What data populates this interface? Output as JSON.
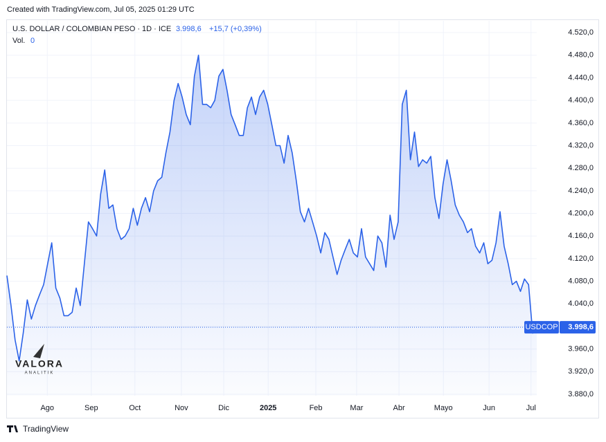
{
  "chart_data": {
    "type": "line",
    "created": "Created with TradingView.com, Jul 05, 2025 01:29 UTC",
    "title": "U.S. DOLLAR / COLOMBIAN PESO · 1D · ICE",
    "last": {
      "value": 3998.6,
      "label": "3.998,6"
    },
    "change": "+15,7 (+0,39%)",
    "volume_label": "Vol.",
    "volume_value": "0",
    "symbol": "USDCOP",
    "logo": "VALORA",
    "logo_sub": "ANALITIK",
    "footer": "TradingView",
    "color": "#2b62e8",
    "grid": true,
    "xlim": [
      0,
      130
    ],
    "xticks": [
      {
        "value": 9.9,
        "label": "Ago"
      },
      {
        "value": 20.7,
        "label": "Sep"
      },
      {
        "value": 31.4,
        "label": "Oct"
      },
      {
        "value": 42.8,
        "label": "Nov"
      },
      {
        "value": 53.2,
        "label": "Dic"
      },
      {
        "value": 64.1,
        "label": "2025"
      },
      {
        "value": 75.8,
        "label": "Feb"
      },
      {
        "value": 85.8,
        "label": "Mar"
      },
      {
        "value": 96.2,
        "label": "Abr"
      },
      {
        "value": 107.1,
        "label": "Mayo"
      },
      {
        "value": 118.3,
        "label": "Jun"
      },
      {
        "value": 128.6,
        "label": "Jul"
      }
    ],
    "ylim": [
      3877.5,
      4541
    ],
    "yticks": [
      {
        "value": 3880,
        "label": "3.880,0"
      },
      {
        "value": 3920,
        "label": "3.920,0"
      },
      {
        "value": 3960,
        "label": "3.960,0"
      },
      {
        "value": 4000,
        "label": "4.000,0"
      },
      {
        "value": 4040,
        "label": "4.040,0"
      },
      {
        "value": 4080,
        "label": "4.080,0"
      },
      {
        "value": 4120,
        "label": "4.120,0"
      },
      {
        "value": 4160,
        "label": "4.160,0"
      },
      {
        "value": 4200,
        "label": "4.200,0"
      },
      {
        "value": 4240,
        "label": "4.240,0"
      },
      {
        "value": 4280,
        "label": "4.280,0"
      },
      {
        "value": 4320,
        "label": "4.320,0"
      },
      {
        "value": 4360,
        "label": "4.360,0"
      },
      {
        "value": 4400,
        "label": "4.400,0"
      },
      {
        "value": 4440,
        "label": "4.440,0"
      },
      {
        "value": 4480,
        "label": "4.480,0"
      },
      {
        "value": 4520,
        "label": "4.520,0"
      }
    ],
    "series": [
      {
        "name": "USDCOP",
        "color": "#2b62e8",
        "values": [
          4090,
          4037,
          3976,
          3939,
          3988,
          4047,
          4013,
          4037,
          4056,
          4074,
          4111,
          4148,
          4068,
          4050,
          4019,
          4019,
          4025,
          4068,
          4037,
          4111,
          4185,
          4173,
          4160,
          4234,
          4277,
          4209,
          4215,
          4173,
          4154,
          4160,
          4173,
          4209,
          4179,
          4209,
          4228,
          4203,
          4240,
          4258,
          4264,
          4307,
          4344,
          4400,
          4430,
          4406,
          4375,
          4357,
          4443,
          4480,
          4393,
          4393,
          4387,
          4400,
          4443,
          4455,
          4418,
          4375,
          4357,
          4338,
          4338,
          4387,
          4406,
          4375,
          4406,
          4418,
          4393,
          4357,
          4320,
          4320,
          4289,
          4338,
          4307,
          4258,
          4203,
          4185,
          4209,
          4185,
          4160,
          4130,
          4166,
          4154,
          4123,
          4092,
          4117,
          4136,
          4154,
          4130,
          4123,
          4173,
          4123,
          4111,
          4099,
          4160,
          4148,
          4105,
          4197,
          4154,
          4185,
          4393,
          4418,
          4295,
          4344,
          4283,
          4295,
          4289,
          4301,
          4228,
          4191,
          4252,
          4295,
          4258,
          4215,
          4197,
          4185,
          4166,
          4173,
          4142,
          4130,
          4148,
          4111,
          4117,
          4148,
          4203,
          4142,
          4111,
          4074,
          4080,
          4062,
          4084,
          4074,
          3988,
          3998.6
        ]
      }
    ]
  }
}
